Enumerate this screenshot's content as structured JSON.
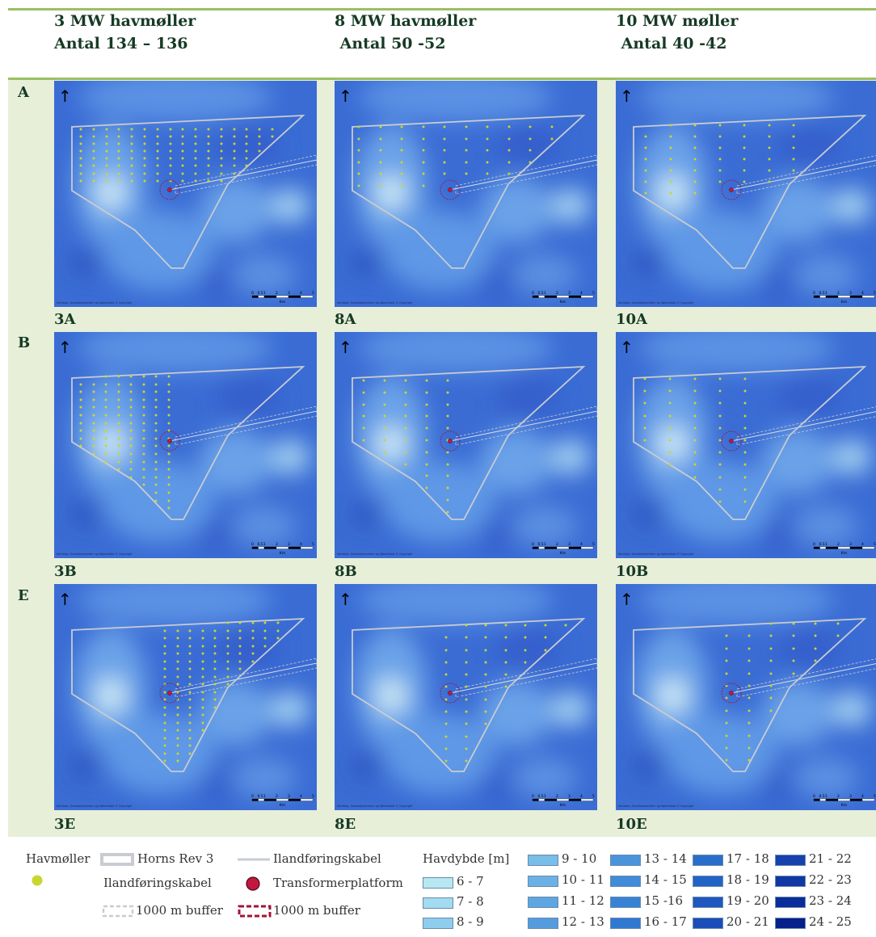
{
  "columns": [
    {
      "line1": "3 MW havmøller",
      "line2": "Antal 134 – 136"
    },
    {
      "line1": "8 MW havmøller",
      "line2": " Antal 50 -52"
    },
    {
      "line1": "10 MW møller",
      "line2": " Antal 40 -42"
    }
  ],
  "rows": [
    {
      "label": "A",
      "captions": [
        "3A",
        "8A",
        "10A"
      ]
    },
    {
      "label": "B",
      "captions": [
        "3B",
        "8B",
        "10B"
      ]
    },
    {
      "label": "E",
      "captions": [
        "3E",
        "8E",
        "10E"
      ]
    }
  ],
  "map_common": {
    "north_arrow": "↑",
    "scale_ticks": [
      "0",
      "0.5",
      "1",
      "2",
      "3",
      "4",
      "5"
    ],
    "scale_unit": "Km",
    "copyright": "Kortdata, Geodatastyrelsen og Søkortdata © Copyright"
  },
  "legend": {
    "havmoller": "Havmøller",
    "horns_rev": "Horns Rev 3",
    "ilandforing1": "Ilandføringskabel",
    "ilandforing2": "Ilandføringskabel",
    "transformer": "Transformerplatform",
    "buffer_cable": "1000 m buffer",
    "buffer_platform": "1000 m buffer",
    "depth_title": "Havdybde [m]",
    "depth_classes": [
      {
        "label": "6 - 7",
        "color": "#b7e8f2"
      },
      {
        "label": "7 - 8",
        "color": "#a3dbf0"
      },
      {
        "label": "8 - 9",
        "color": "#8ecdee"
      },
      {
        "label": "9 - 10",
        "color": "#79bde9"
      },
      {
        "label": "10 - 11",
        "color": "#6bb1e6"
      },
      {
        "label": "11 - 12",
        "color": "#5ea6e2"
      },
      {
        "label": "12 - 13",
        "color": "#559cdf"
      },
      {
        "label": "13 - 14",
        "color": "#4b94dc"
      },
      {
        "label": "14 - 15",
        "color": "#428bd9"
      },
      {
        "label": "15 -16",
        "color": "#3882d6"
      },
      {
        "label": "16 - 17",
        "color": "#3079d2"
      },
      {
        "label": "17 - 18",
        "color": "#2a6ecc"
      },
      {
        "label": "18 - 19",
        "color": "#2463c6"
      },
      {
        "label": "19 - 20",
        "color": "#1f58bf"
      },
      {
        "label": "20 - 21",
        "color": "#1a4db7"
      },
      {
        "label": "21 - 22",
        "color": "#1542ae"
      },
      {
        "label": "22 - 23",
        "color": "#1037a4"
      },
      {
        "label": "23 - 24",
        "color": "#0b2c99"
      },
      {
        "label": "24 - 25",
        "color": "#06208c"
      }
    ]
  },
  "colors": {
    "band": "#e7efd9",
    "rule": "#9bbf62",
    "turbine": "#c8d62f",
    "platform": "#c21840",
    "boundary": "#c8ccd2"
  }
}
